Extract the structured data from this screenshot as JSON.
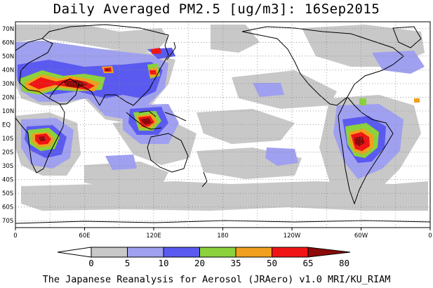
{
  "title": "Daily Averaged PM2.5 [ug/m3]: 16Sep2015",
  "footer": "The Japanese Reanalysis for Aerosol (JRAero) v1.0 MRI/KU_RIAM",
  "map": {
    "lat_labels": [
      "70N",
      "60N",
      "50N",
      "40N",
      "30N",
      "20N",
      "10N",
      "EQ",
      "10S",
      "20S",
      "30S",
      "40S",
      "50S",
      "60S",
      "70S"
    ],
    "lon_labels": [
      "0",
      "60E",
      "120E",
      "180",
      "120W",
      "60W",
      "0"
    ],
    "background_color": "#ffffff",
    "coast_color": "#000000",
    "grid_style": "dotted"
  },
  "colorbar": {
    "tick_labels": [
      "0",
      "5",
      "10",
      "20",
      "35",
      "50",
      "65",
      "80"
    ],
    "colors": [
      "#ffffff",
      "#c8c8c8",
      "#a0a0f0",
      "#5a5af0",
      "#8cd23c",
      "#f0a01e",
      "#f01414",
      "#8c0a0a"
    ]
  }
}
